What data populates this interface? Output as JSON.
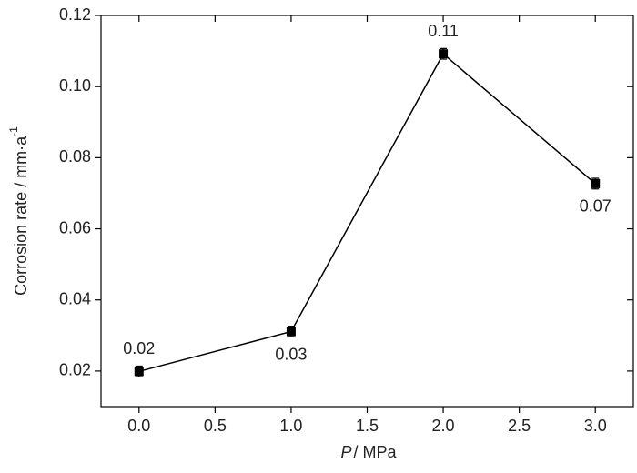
{
  "chart_data": {
    "type": "line",
    "xlabel_symbol": "P",
    "xlabel_unit": "/ MPa",
    "ylabel": "Corrosion rate / mm·a",
    "ylabel_superscript": "-1",
    "x": [
      0,
      1,
      2,
      3
    ],
    "series": [
      {
        "color": "#000000",
        "values": [
          0.0199,
          0.0311,
          0.1092,
          0.0727
        ],
        "errors": [
          0.0015,
          0.0015,
          0.0015,
          0.0015
        ],
        "value_labels": [
          "0.02",
          "0.03",
          "0.11",
          "0.07"
        ],
        "label_position": [
          "above",
          "below",
          "above",
          "below"
        ]
      }
    ],
    "xlim": [
      -0.25,
      3.25
    ],
    "xticks": [
      {
        "value": 0,
        "label": "0.0"
      },
      0.5,
      {
        "value": 1,
        "label": "1.0"
      },
      1.5,
      {
        "value": 2,
        "label": "2.0"
      },
      2.5,
      {
        "value": 3,
        "label": "3.0"
      }
    ],
    "ylim": [
      0.01,
      0.12
    ],
    "yticks": [
      0.02,
      0.04,
      0.06,
      0.08,
      {
        "value": 0.1,
        "label": "0.10"
      },
      0.12
    ],
    "grid": false
  }
}
